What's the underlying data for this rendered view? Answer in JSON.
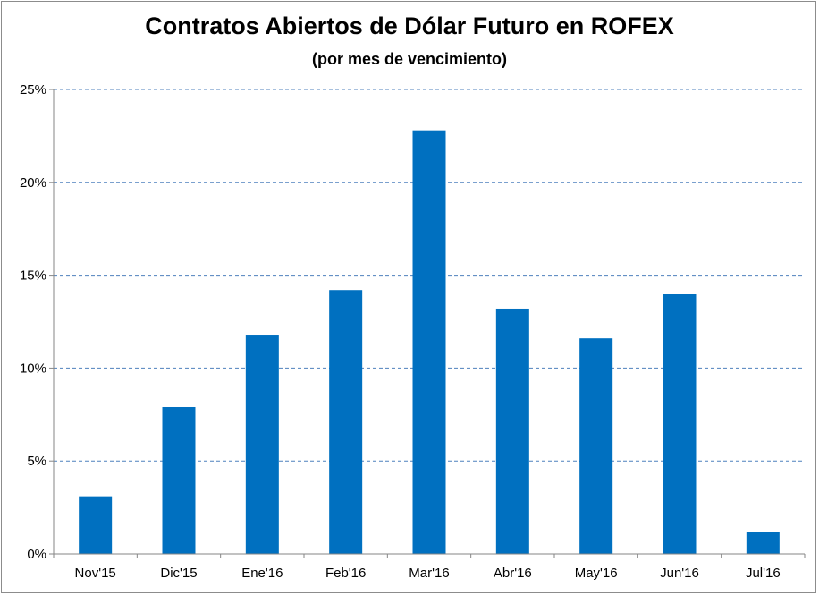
{
  "chart_data": {
    "type": "bar",
    "title": "Contratos Abiertos de Dólar Futuro en ROFEX",
    "subtitle": "(por mes de vencimiento)",
    "xlabel": "",
    "ylabel": "",
    "categories": [
      "Nov'15",
      "Dic'15",
      "Ene'16",
      "Feb'16",
      "Mar'16",
      "Abr'16",
      "May'16",
      "Jun'16",
      "Jul'16"
    ],
    "values": [
      3.1,
      7.9,
      11.8,
      14.2,
      22.8,
      13.2,
      11.6,
      14.0,
      1.2
    ],
    "ylim": [
      0,
      25
    ],
    "yticks": [
      0,
      5,
      10,
      15,
      20,
      25
    ],
    "ytick_labels": [
      "0%",
      "5%",
      "10%",
      "15%",
      "20%",
      "25%"
    ],
    "grid": true,
    "legend": "none",
    "bar_color": "#0070c0",
    "grid_color": "#4f81bd"
  }
}
